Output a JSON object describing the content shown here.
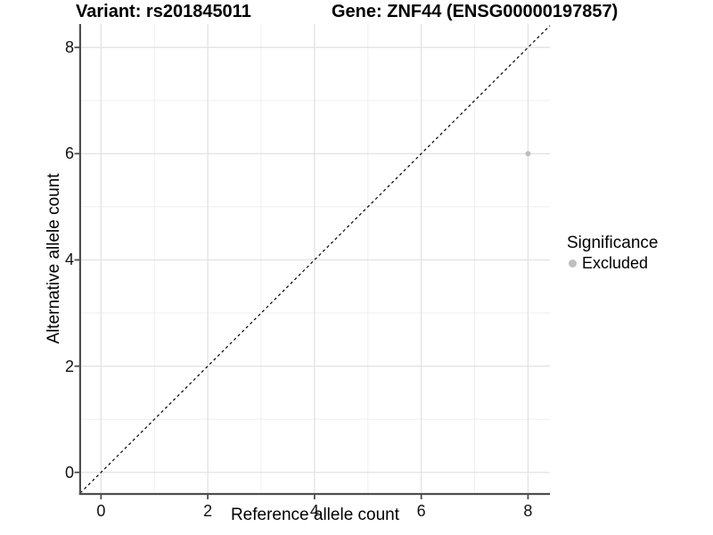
{
  "chart_data": {
    "type": "scatter",
    "titles": {
      "left": "Variant: rs201845011",
      "right": "Gene: ZNF44 (ENSG00000197857)"
    },
    "xlabel": "Reference allele count",
    "ylabel": "Alternative allele count",
    "xlim": [
      -0.39,
      8.41
    ],
    "ylim": [
      -0.39,
      8.44
    ],
    "x_ticks": [
      0,
      2,
      4,
      6,
      8
    ],
    "y_ticks": [
      0,
      2,
      4,
      6,
      8
    ],
    "x_minor_gridlines": [
      1,
      3,
      5,
      7
    ],
    "y_minor_gridlines": [
      1,
      3,
      5,
      7
    ],
    "grid": "on",
    "reference_line": {
      "kind": "identity y=x",
      "style": "dashed",
      "color": "#000000"
    },
    "series": [
      {
        "name": "Excluded",
        "color": "#bebebe",
        "points": [
          {
            "x": 8,
            "y": 6
          }
        ]
      }
    ],
    "legend": {
      "title": "Significance",
      "position": "right",
      "items": [
        {
          "label": "Excluded",
          "color": "#bebebe"
        }
      ]
    },
    "style": {
      "major_grid": "#e2e2e2",
      "minor_grid": "#efefef",
      "axis_line": "#4f4f4f",
      "tick_mark": "#4f4f4f",
      "point_color": "#bebebe",
      "background": "#ffffff"
    }
  }
}
